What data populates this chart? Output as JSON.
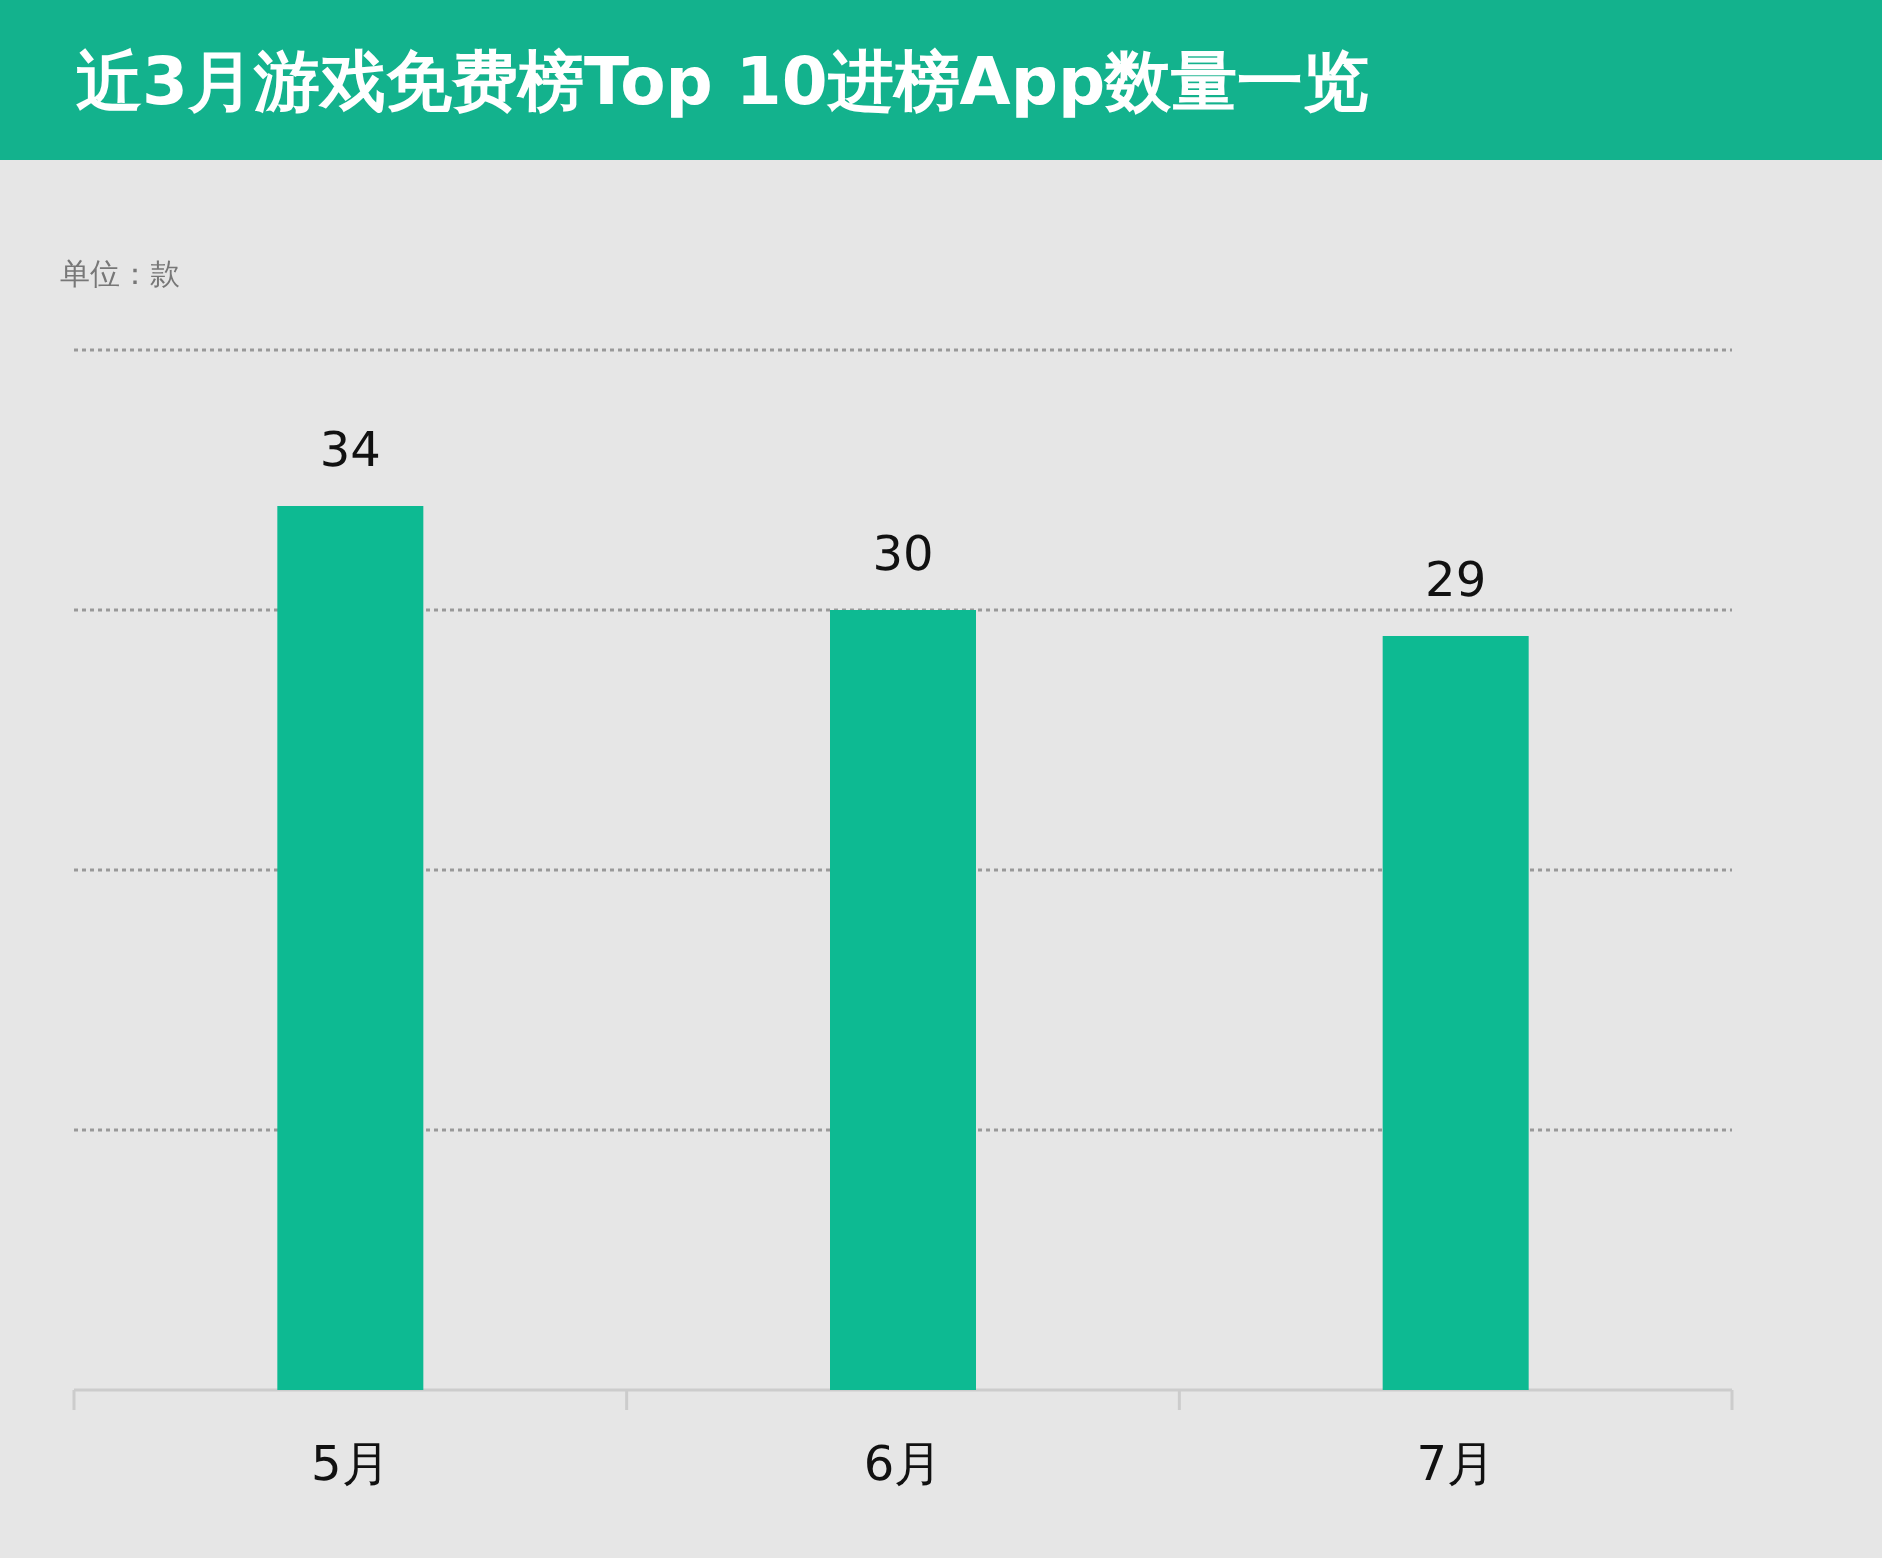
{
  "chart_data": {
    "type": "bar",
    "title": "近3月游戏免费榜Top 10进榜App数量一览",
    "ylabel": "单位：款",
    "categories": [
      "5月",
      "6月",
      "7月"
    ],
    "values": [
      34,
      30,
      29
    ],
    "color": "#0dba92",
    "ylim": [
      0,
      40
    ],
    "yticks": [
      {
        "value": 0,
        "label": null
      },
      {
        "value": 10,
        "label": null
      },
      {
        "value": 20,
        "label": null
      },
      {
        "value": 30,
        "label": null
      },
      {
        "value": 40,
        "label": null
      }
    ],
    "grid": "y",
    "tick_labels": "x",
    "data_labels": true
  }
}
